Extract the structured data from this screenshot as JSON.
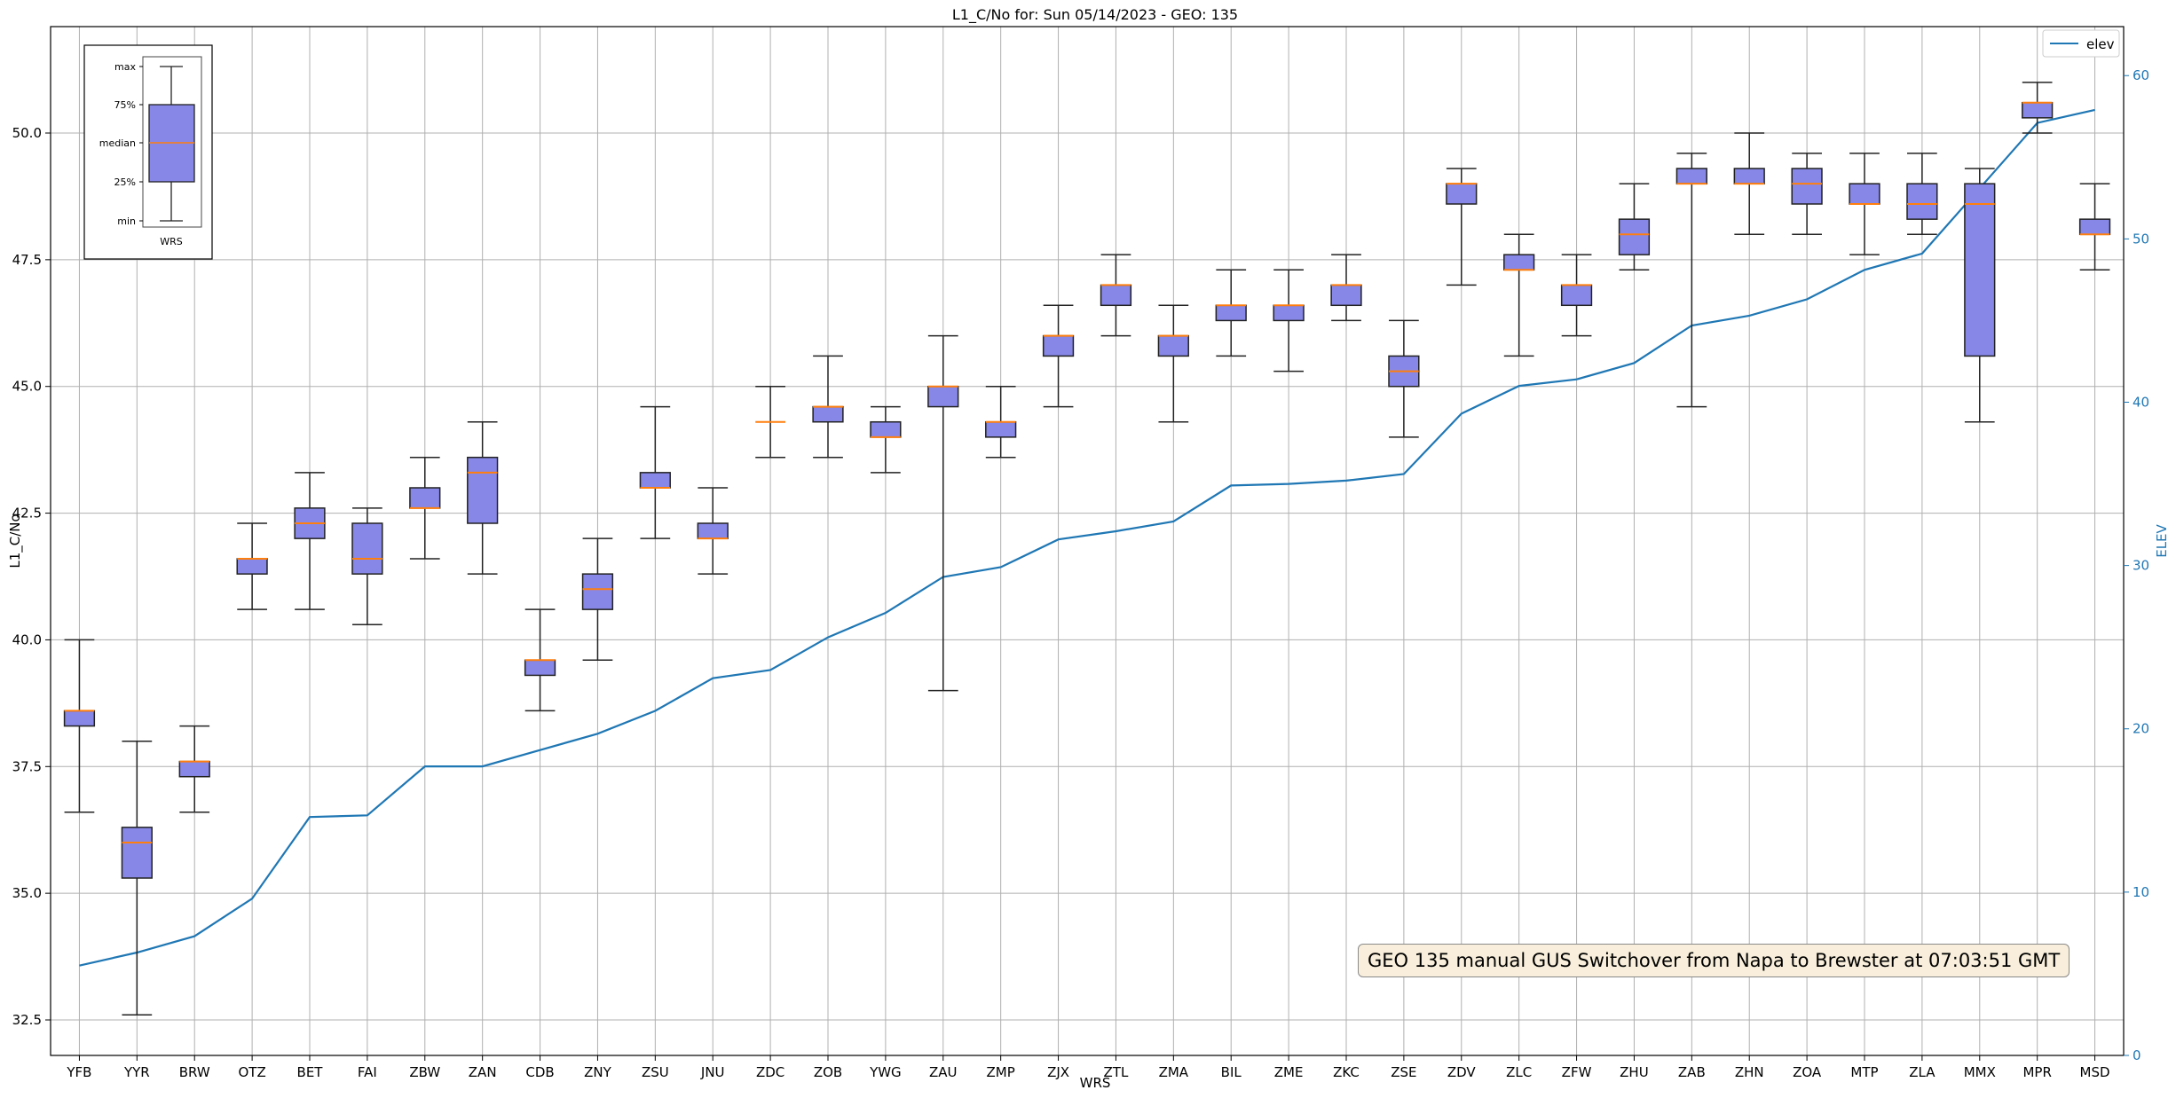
{
  "chart_data": {
    "type": "box+line",
    "title": "L1_C/No for: Sun 05/14/2023 - GEO: 135",
    "xlabel": "WRS",
    "ylabel": "L1_C/No",
    "y2label": "ELEV",
    "ylim": [
      31.8,
      52.1
    ],
    "y2lim": [
      0,
      63
    ],
    "yticks": [
      "32.5",
      "35.0",
      "37.5",
      "40.0",
      "42.5",
      "45.0",
      "47.5",
      "50.0"
    ],
    "y2ticks": [
      "0",
      "10",
      "20",
      "30",
      "40",
      "50",
      "60"
    ],
    "grid": true,
    "box_color": "#8787e8",
    "median_color": "#ff7f0e",
    "line_color": "#1f77b4",
    "legend": {
      "label": "elev",
      "position": "top-right"
    },
    "categories": [
      "YFB",
      "YYR",
      "BRW",
      "OTZ",
      "BET",
      "FAI",
      "ZBW",
      "ZAN",
      "CDB",
      "ZNY",
      "ZSU",
      "JNU",
      "ZDC",
      "ZOB",
      "YWG",
      "ZAU",
      "ZMP",
      "ZJX",
      "ZTL",
      "ZMA",
      "BIL",
      "ZME",
      "ZKC",
      "ZSE",
      "ZDV",
      "ZLC",
      "ZFW",
      "ZHU",
      "ZAB",
      "ZHN",
      "ZOA",
      "MTP",
      "ZLA",
      "MMX",
      "MPR",
      "MSD"
    ],
    "boxes": [
      {
        "min": 36.6,
        "q1": 38.3,
        "median": 38.6,
        "q3": 38.6,
        "max": 40.0
      },
      {
        "min": 32.6,
        "q1": 35.3,
        "median": 36.0,
        "q3": 36.3,
        "max": 38.0
      },
      {
        "min": 36.6,
        "q1": 37.3,
        "median": 37.6,
        "q3": 37.6,
        "max": 38.3
      },
      {
        "min": 40.6,
        "q1": 41.3,
        "median": 41.6,
        "q3": 41.6,
        "max": 42.3
      },
      {
        "min": 40.6,
        "q1": 42.0,
        "median": 42.3,
        "q3": 42.6,
        "max": 43.3
      },
      {
        "min": 40.3,
        "q1": 41.3,
        "median": 41.6,
        "q3": 42.3,
        "max": 42.6
      },
      {
        "min": 41.6,
        "q1": 42.6,
        "median": 42.6,
        "q3": 43.0,
        "max": 43.6
      },
      {
        "min": 41.3,
        "q1": 42.3,
        "median": 43.3,
        "q3": 43.6,
        "max": 44.3
      },
      {
        "min": 38.6,
        "q1": 39.3,
        "median": 39.6,
        "q3": 39.6,
        "max": 40.6
      },
      {
        "min": 39.6,
        "q1": 40.6,
        "median": 41.0,
        "q3": 41.3,
        "max": 42.0
      },
      {
        "min": 42.0,
        "q1": 43.0,
        "median": 43.0,
        "q3": 43.3,
        "max": 44.6
      },
      {
        "min": 41.3,
        "q1": 42.0,
        "median": 42.0,
        "q3": 42.3,
        "max": 43.0
      },
      {
        "min": 43.6,
        "q1": 44.3,
        "median": 44.3,
        "q3": 44.3,
        "max": 45.0
      },
      {
        "min": 43.6,
        "q1": 44.3,
        "median": 44.6,
        "q3": 44.6,
        "max": 45.6
      },
      {
        "min": 43.3,
        "q1": 44.0,
        "median": 44.0,
        "q3": 44.3,
        "max": 44.6
      },
      {
        "min": 39.0,
        "q1": 44.6,
        "median": 45.0,
        "q3": 45.0,
        "max": 46.0
      },
      {
        "min": 43.6,
        "q1": 44.0,
        "median": 44.3,
        "q3": 44.3,
        "max": 45.0
      },
      {
        "min": 44.6,
        "q1": 45.6,
        "median": 46.0,
        "q3": 46.0,
        "max": 46.6
      },
      {
        "min": 46.0,
        "q1": 46.6,
        "median": 47.0,
        "q3": 47.0,
        "max": 47.6
      },
      {
        "min": 44.3,
        "q1": 45.6,
        "median": 46.0,
        "q3": 46.0,
        "max": 46.6
      },
      {
        "min": 45.6,
        "q1": 46.3,
        "median": 46.6,
        "q3": 46.6,
        "max": 47.3
      },
      {
        "min": 45.3,
        "q1": 46.3,
        "median": 46.6,
        "q3": 46.6,
        "max": 47.3
      },
      {
        "min": 46.3,
        "q1": 46.6,
        "median": 47.0,
        "q3": 47.0,
        "max": 47.6
      },
      {
        "min": 44.0,
        "q1": 45.0,
        "median": 45.3,
        "q3": 45.6,
        "max": 46.3
      },
      {
        "min": 47.0,
        "q1": 48.6,
        "median": 49.0,
        "q3": 49.0,
        "max": 49.3
      },
      {
        "min": 45.6,
        "q1": 47.3,
        "median": 47.3,
        "q3": 47.6,
        "max": 48.0
      },
      {
        "min": 46.0,
        "q1": 46.6,
        "median": 47.0,
        "q3": 47.0,
        "max": 47.6
      },
      {
        "min": 47.3,
        "q1": 47.6,
        "median": 48.0,
        "q3": 48.3,
        "max": 49.0
      },
      {
        "min": 44.6,
        "q1": 49.0,
        "median": 49.0,
        "q3": 49.3,
        "max": 49.6
      },
      {
        "min": 48.0,
        "q1": 49.0,
        "median": 49.0,
        "q3": 49.3,
        "max": 50.0
      },
      {
        "min": 48.0,
        "q1": 48.6,
        "median": 49.0,
        "q3": 49.3,
        "max": 49.6
      },
      {
        "min": 47.6,
        "q1": 48.6,
        "median": 48.6,
        "q3": 49.0,
        "max": 49.6
      },
      {
        "min": 48.0,
        "q1": 48.3,
        "median": 48.6,
        "q3": 49.0,
        "max": 49.6
      },
      {
        "min": 44.3,
        "q1": 45.6,
        "median": 48.6,
        "q3": 49.0,
        "max": 49.3
      },
      {
        "min": 50.0,
        "q1": 50.3,
        "median": 50.6,
        "q3": 50.6,
        "max": 51.0
      },
      {
        "min": 47.3,
        "q1": 48.0,
        "median": 48.0,
        "q3": 48.3,
        "max": 49.0
      }
    ],
    "elev": [
      5.5,
      6.3,
      7.3,
      9.6,
      14.6,
      14.7,
      17.7,
      17.7,
      18.7,
      19.7,
      21.1,
      23.1,
      23.6,
      25.6,
      27.1,
      29.3,
      29.9,
      31.6,
      32.1,
      32.7,
      34.9,
      35.0,
      35.2,
      35.6,
      39.3,
      41.0,
      41.4,
      42.4,
      44.7,
      45.3,
      46.3,
      48.1,
      49.1,
      53.1,
      57.1,
      57.9
    ],
    "inset": {
      "labels": [
        "max",
        "75%",
        "median",
        "25%",
        "min"
      ],
      "xlabel": "WRS"
    },
    "annotation": "GEO 135 manual GUS Switchover from Napa to Brewster at 07:03:51 GMT"
  }
}
